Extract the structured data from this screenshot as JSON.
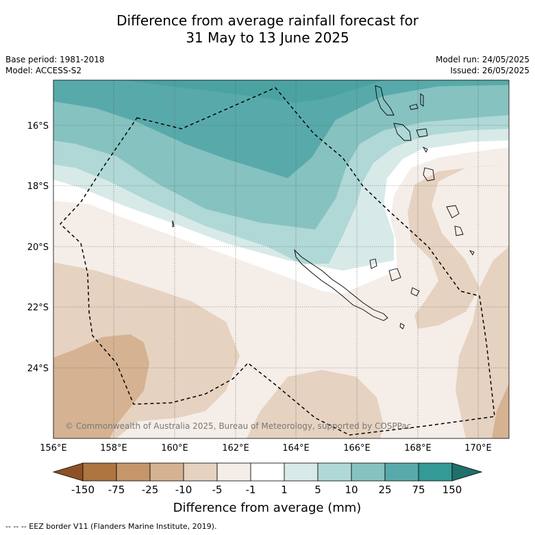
{
  "title_line1": "Difference from average rainfall forecast for",
  "title_line2": "31 May to 13 June 2025",
  "base_period": "Base period: 1981-2018",
  "model": "Model: ACCESS-S2",
  "model_run": "Model run: 24/05/2025",
  "issued": "Issued: 26/05/2025",
  "lat_labels": [
    "16°S",
    "18°S",
    "20°S",
    "22°S",
    "24°S"
  ],
  "lon_labels": [
    "156°E",
    "158°E",
    "160°E",
    "162°E",
    "164°E",
    "166°E",
    "168°E",
    "170°E"
  ],
  "copyright": "© Commonwealth of Australia 2025, Bureau of Meteorology, supported by COSPPac",
  "colorbar": {
    "ticks": [
      "-150",
      "-75",
      "-25",
      "-10",
      "-5",
      "-1",
      "1",
      "5",
      "10",
      "25",
      "75",
      "150"
    ],
    "colors": [
      "#8c5226",
      "#ad7540",
      "#c4966a",
      "#d5b291",
      "#e6d2c0",
      "#f5ede8",
      "#ffffff",
      "#d7eae8",
      "#afd8d6",
      "#86c2c0",
      "#58aaaa",
      "#339a96",
      "#1f6f6a"
    ],
    "title": "Difference from average (mm)"
  },
  "footer": "--  --  -- EEZ border V11 (Flanders Marine Institute, 2019)."
}
